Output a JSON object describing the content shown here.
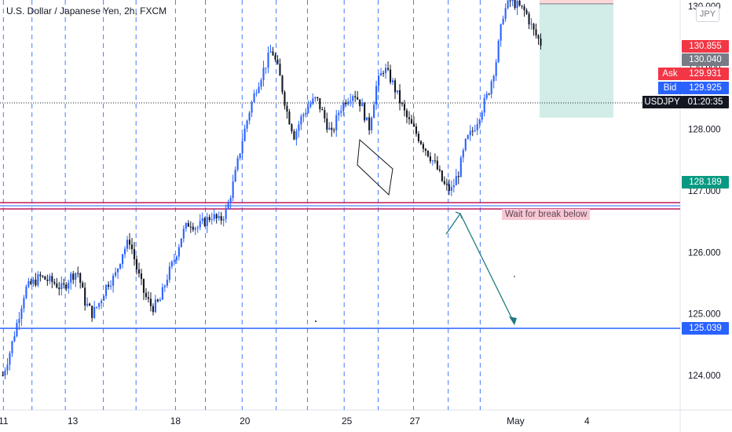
{
  "header": {
    "title": "U.S. Dollar / Japanese Yen, 2h, FXCM",
    "currency_button": "JPY"
  },
  "price_tags": {
    "target_high": "130.855",
    "entry": "130.040",
    "ask_label": "Ask",
    "ask": "129.931",
    "bid_label": "Bid",
    "bid": "129.925",
    "symbol_label": "USDJPY",
    "countdown": "01:20:35",
    "stop_target": "128.189",
    "support": "125.039"
  },
  "annotations": {
    "note": "Wait for break below"
  },
  "colors": {
    "up": "#26a69a",
    "down": "#131722",
    "candle_up_body": "#2962ff",
    "vline": "#2962ff",
    "support_line": "#2962ff",
    "resistance_red": "#c2185b",
    "target_high": "#f23645",
    "entry": "#787b86",
    "ask": "#f23645",
    "bid": "#2962ff",
    "symbol": "#131722",
    "stop_target": "#089981",
    "arrow": "#1f7a80"
  },
  "chart_data": {
    "type": "candlestick",
    "symbol": "USDJPY",
    "interval": "2h",
    "source": "FXCM",
    "y_axis": {
      "min": 123.6,
      "max": 130.0,
      "ticks": [
        124.0,
        125.0,
        126.0,
        127.0,
        128.0,
        129.0,
        130.0
      ],
      "tick_labels": [
        "124.000",
        "125.000",
        "126.000",
        "127.000",
        "128.000",
        "129.000",
        "130.000"
      ]
    },
    "x_axis": {
      "ticks": [
        {
          "label": "11",
          "pos": 0.005
        },
        {
          "label": "13",
          "pos": 0.107
        },
        {
          "label": "18",
          "pos": 0.258
        },
        {
          "label": "20",
          "pos": 0.36
        },
        {
          "label": "25",
          "pos": 0.51
        },
        {
          "label": "27",
          "pos": 0.61
        },
        {
          "label": "May",
          "pos": 0.758
        },
        {
          "label": "4",
          "pos": 0.863
        }
      ]
    },
    "session_lines": [
      0.005,
      0.047,
      0.096,
      0.152,
      0.2,
      0.258,
      0.302,
      0.356,
      0.406,
      0.452,
      0.506,
      0.556,
      0.608,
      0.659,
      0.706
    ],
    "close_path": [
      124.0,
      124.4,
      124.9,
      125.4,
      125.5,
      125.6,
      125.55,
      125.5,
      125.4,
      125.6,
      125.7,
      125.2,
      125.0,
      125.2,
      125.5,
      125.6,
      126.0,
      126.2,
      125.7,
      125.3,
      125.1,
      125.2,
      125.6,
      125.9,
      126.3,
      126.5,
      126.4,
      126.5,
      126.6,
      126.5,
      126.7,
      127.2,
      127.8,
      128.3,
      128.7,
      129.0,
      129.3,
      128.9,
      128.3,
      127.9,
      128.2,
      128.4,
      128.5,
      128.2,
      127.9,
      128.3,
      128.5,
      128.6,
      128.4,
      128.0,
      128.7,
      129.0,
      128.8,
      128.5,
      128.2,
      128.0,
      127.8,
      127.6,
      127.4,
      127.1,
      127.0,
      127.3,
      127.8,
      128.0,
      128.3,
      128.6,
      129.1,
      129.9,
      130.1,
      130.0,
      129.9,
      129.6,
      129.4
    ]
  }
}
